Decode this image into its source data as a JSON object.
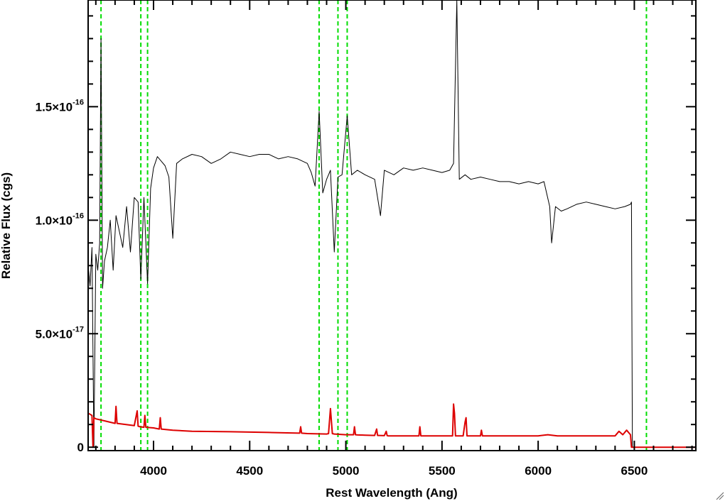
{
  "chart_data": {
    "type": "line",
    "title": "",
    "xlabel": "Rest Wavelength (Ang)",
    "ylabel": "Relative Flux (cgs)",
    "xlim": [
      3660,
      6820
    ],
    "ylim": [
      -1.5e-18,
      1.97e-16
    ],
    "grid": false,
    "legend": "none",
    "x_ticks": [
      {
        "value": 4000,
        "label": "4000"
      },
      {
        "value": 4500,
        "label": "4500"
      },
      {
        "value": 5000,
        "label": "5000"
      },
      {
        "value": 5500,
        "label": "5500"
      },
      {
        "value": 6000,
        "label": "6000"
      },
      {
        "value": 6500,
        "label": "6500"
      }
    ],
    "y_ticks": [
      {
        "value": 0,
        "mantissa": "0",
        "exponent": ""
      },
      {
        "value": 5e-17,
        "mantissa": "5.0×10",
        "exponent": "-17"
      },
      {
        "value": 1e-16,
        "mantissa": "1.0×10",
        "exponent": "-16"
      },
      {
        "value": 1.5e-16,
        "mantissa": "1.5×10",
        "exponent": "-16"
      }
    ],
    "reference_lines_x": [
      3727,
      3934,
      3969,
      4861,
      4959,
      5007,
      6563
    ],
    "series": [
      {
        "color": "#000000",
        "x": [
          3660,
          3670,
          3680,
          3690,
          3700,
          3710,
          3720,
          3727,
          3735,
          3745,
          3760,
          3775,
          3790,
          3805,
          3820,
          3840,
          3860,
          3880,
          3900,
          3920,
          3934,
          3950,
          3969,
          3985,
          4000,
          4020,
          4040,
          4060,
          4080,
          4100,
          4120,
          4150,
          4200,
          4250,
          4300,
          4350,
          4400,
          4450,
          4500,
          4550,
          4600,
          4650,
          4700,
          4750,
          4800,
          4820,
          4840,
          4861,
          4880,
          4900,
          4920,
          4940,
          4959,
          4980,
          5007,
          5030,
          5060,
          5100,
          5150,
          5180,
          5200,
          5250,
          5300,
          5350,
          5400,
          5450,
          5500,
          5540,
          5560,
          5577,
          5590,
          5620,
          5650,
          5700,
          5750,
          5800,
          5850,
          5900,
          5950,
          6000,
          6030,
          6060,
          6070,
          6090,
          6120,
          6150,
          6200,
          6250,
          6300,
          6350,
          6400,
          6450,
          6480,
          6485,
          6490,
          6500,
          6820
        ],
        "y": [
          8e-17,
          7.1e-17,
          8.8e-17,
          0,
          8.5e-17,
          7.8e-17,
          9e-17,
          1.8e-16,
          7e-17,
          8.2e-17,
          8.8e-17,
          1e-16,
          7.8e-17,
          1.02e-16,
          9.6e-17,
          8.8e-17,
          1.06e-16,
          8.6e-17,
          1.1e-16,
          1.08e-16,
          7.4e-17,
          1.1e-16,
          7.2e-17,
          1.14e-16,
          1.23e-16,
          1.28e-16,
          1.26e-16,
          1.24e-16,
          1.19e-16,
          9.2e-17,
          1.25e-16,
          1.27e-16,
          1.29e-16,
          1.28e-16,
          1.25e-16,
          1.27e-16,
          1.3e-16,
          1.29e-16,
          1.28e-16,
          1.29e-16,
          1.29e-16,
          1.27e-16,
          1.28e-16,
          1.27e-16,
          1.25e-16,
          1.21e-16,
          1.15e-16,
          1.48e-16,
          1.12e-16,
          1.18e-16,
          1.22e-16,
          8.6e-17,
          1.19e-16,
          1.2e-16,
          1.46e-16,
          1.2e-16,
          1.22e-16,
          1.2e-16,
          1.18e-16,
          1.02e-16,
          1.22e-16,
          1.2e-16,
          1.23e-16,
          1.22e-16,
          1.23e-16,
          1.22e-16,
          1.21e-16,
          1.22e-16,
          1.25e-16,
          1.97e-16,
          1.18e-16,
          1.2e-16,
          1.18e-16,
          1.19e-16,
          1.18e-16,
          1.17e-16,
          1.17e-16,
          1.16e-16,
          1.17e-16,
          1.16e-16,
          1.17e-16,
          1.06e-16,
          9e-17,
          1.06e-16,
          1.04e-16,
          1.05e-16,
          1.07e-16,
          1.08e-16,
          1.07e-16,
          1.06e-16,
          1.05e-16,
          1.06e-16,
          1.07e-16,
          1.08e-16,
          0,
          0,
          0
        ]
      },
      {
        "color": "#dd0000",
        "x": [
          3660,
          3670,
          3680,
          3685,
          3690,
          3700,
          3750,
          3800,
          3805,
          3810,
          3900,
          3915,
          3920,
          3930,
          3950,
          3955,
          3960,
          4000,
          4030,
          4035,
          4040,
          4100,
          4200,
          4400,
          4600,
          4760,
          4765,
          4770,
          4800,
          4900,
          4910,
          4920,
          4930,
          4940,
          5000,
          5040,
          5045,
          5050,
          5060,
          5100,
          5150,
          5160,
          5165,
          5170,
          5200,
          5210,
          5215,
          5220,
          5300,
          5380,
          5385,
          5390,
          5400,
          5500,
          5555,
          5560,
          5565,
          5570,
          5590,
          5610,
          5620,
          5625,
          5630,
          5640,
          5700,
          5705,
          5710,
          5720,
          6000,
          6050,
          6100,
          6400,
          6420,
          6440,
          6460,
          6480,
          6485,
          6490,
          6820
        ],
        "y": [
          1.5e-17,
          1.45e-17,
          1.4e-17,
          0,
          1.3e-17,
          1.25e-17,
          1.15e-17,
          1.05e-17,
          1.8e-17,
          1.05e-17,
          9.5e-18,
          1.6e-17,
          9.3e-18,
          9e-18,
          8.8e-18,
          1.4e-17,
          8.8e-18,
          8.5e-18,
          8e-18,
          1.3e-17,
          8e-18,
          7.5e-18,
          7e-18,
          6.8e-18,
          6.5e-18,
          6.2e-18,
          9e-18,
          6.2e-18,
          6e-18,
          5.8e-18,
          6e-18,
          1.7e-17,
          6e-18,
          5.8e-18,
          5.5e-18,
          5.5e-18,
          9e-18,
          5.5e-18,
          5.4e-18,
          5.3e-18,
          5.2e-18,
          8e-18,
          5.2e-18,
          5.2e-18,
          5.1e-18,
          7e-18,
          5.1e-18,
          5e-18,
          5e-18,
          5e-18,
          9e-18,
          5e-18,
          5e-18,
          5e-18,
          5e-18,
          1.9e-17,
          1.5e-17,
          5e-18,
          5e-18,
          5e-18,
          1.1e-17,
          1.3e-17,
          5e-18,
          5e-18,
          5e-18,
          7.5e-18,
          5e-18,
          5e-18,
          5e-18,
          5.5e-18,
          5e-18,
          5e-18,
          7e-18,
          5.5e-18,
          7.5e-18,
          5.5e-18,
          0,
          0,
          0
        ]
      }
    ]
  },
  "colors": {
    "reference_line": "#00dd00",
    "axis": "#000000",
    "background": "#ffffff"
  }
}
